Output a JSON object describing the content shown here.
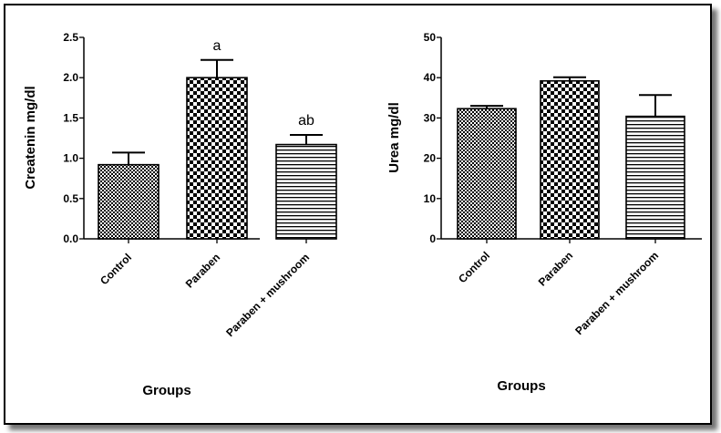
{
  "chart_data": [
    {
      "type": "bar",
      "categories": [
        "Control",
        "Paraben",
        "Paraben + mushroom"
      ],
      "values": [
        0.92,
        2.0,
        1.17
      ],
      "error": [
        0.15,
        0.22,
        0.12
      ],
      "annotations": [
        "",
        "a",
        "ab"
      ],
      "xlabel": "Groups",
      "ylabel": "Createnin mg/dl",
      "ylim": [
        0,
        2.5
      ],
      "yticks": [
        "0.0",
        "0.5",
        "1.0",
        "1.5",
        "2.0",
        "2.5"
      ],
      "patterns": [
        "fine-checker",
        "checker",
        "horizontal-lines"
      ],
      "grid": false
    },
    {
      "type": "bar",
      "categories": [
        "Control",
        "Paraben",
        "Paraben + mushroom"
      ],
      "values": [
        32.3,
        39.2,
        30.4
      ],
      "error": [
        0.7,
        0.9,
        5.3
      ],
      "annotations": [
        "",
        "",
        ""
      ],
      "xlabel": "Groups",
      "ylabel": "Urea mg/dl",
      "ylim": [
        0,
        50
      ],
      "yticks": [
        "0",
        "10",
        "20",
        "30",
        "40",
        "50"
      ],
      "patterns": [
        "fine-checker",
        "checker",
        "horizontal-lines"
      ],
      "grid": false
    }
  ]
}
